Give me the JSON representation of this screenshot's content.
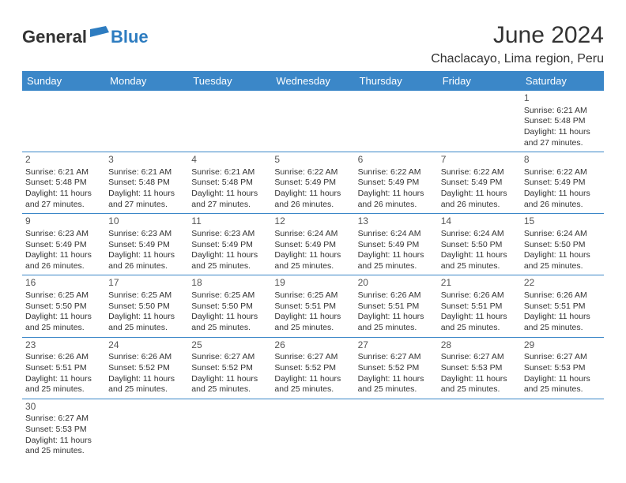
{
  "brand": {
    "part1": "General",
    "part2": "Blue"
  },
  "title": "June 2024",
  "location": "Chaclacayo, Lima region, Peru",
  "colors": {
    "header_bg": "#3b87c8",
    "header_text": "#ffffff",
    "brand_blue": "#2d7cc0",
    "text": "#333333",
    "rule": "#3b87c8"
  },
  "weekdays": [
    "Sunday",
    "Monday",
    "Tuesday",
    "Wednesday",
    "Thursday",
    "Friday",
    "Saturday"
  ],
  "weeks": [
    [
      null,
      null,
      null,
      null,
      null,
      null,
      {
        "d": "1",
        "l1": "Sunrise: 6:21 AM",
        "l2": "Sunset: 5:48 PM",
        "l3": "Daylight: 11 hours",
        "l4": "and 27 minutes."
      }
    ],
    [
      {
        "d": "2",
        "l1": "Sunrise: 6:21 AM",
        "l2": "Sunset: 5:48 PM",
        "l3": "Daylight: 11 hours",
        "l4": "and 27 minutes."
      },
      {
        "d": "3",
        "l1": "Sunrise: 6:21 AM",
        "l2": "Sunset: 5:48 PM",
        "l3": "Daylight: 11 hours",
        "l4": "and 27 minutes."
      },
      {
        "d": "4",
        "l1": "Sunrise: 6:21 AM",
        "l2": "Sunset: 5:48 PM",
        "l3": "Daylight: 11 hours",
        "l4": "and 27 minutes."
      },
      {
        "d": "5",
        "l1": "Sunrise: 6:22 AM",
        "l2": "Sunset: 5:49 PM",
        "l3": "Daylight: 11 hours",
        "l4": "and 26 minutes."
      },
      {
        "d": "6",
        "l1": "Sunrise: 6:22 AM",
        "l2": "Sunset: 5:49 PM",
        "l3": "Daylight: 11 hours",
        "l4": "and 26 minutes."
      },
      {
        "d": "7",
        "l1": "Sunrise: 6:22 AM",
        "l2": "Sunset: 5:49 PM",
        "l3": "Daylight: 11 hours",
        "l4": "and 26 minutes."
      },
      {
        "d": "8",
        "l1": "Sunrise: 6:22 AM",
        "l2": "Sunset: 5:49 PM",
        "l3": "Daylight: 11 hours",
        "l4": "and 26 minutes."
      }
    ],
    [
      {
        "d": "9",
        "l1": "Sunrise: 6:23 AM",
        "l2": "Sunset: 5:49 PM",
        "l3": "Daylight: 11 hours",
        "l4": "and 26 minutes."
      },
      {
        "d": "10",
        "l1": "Sunrise: 6:23 AM",
        "l2": "Sunset: 5:49 PM",
        "l3": "Daylight: 11 hours",
        "l4": "and 26 minutes."
      },
      {
        "d": "11",
        "l1": "Sunrise: 6:23 AM",
        "l2": "Sunset: 5:49 PM",
        "l3": "Daylight: 11 hours",
        "l4": "and 25 minutes."
      },
      {
        "d": "12",
        "l1": "Sunrise: 6:24 AM",
        "l2": "Sunset: 5:49 PM",
        "l3": "Daylight: 11 hours",
        "l4": "and 25 minutes."
      },
      {
        "d": "13",
        "l1": "Sunrise: 6:24 AM",
        "l2": "Sunset: 5:49 PM",
        "l3": "Daylight: 11 hours",
        "l4": "and 25 minutes."
      },
      {
        "d": "14",
        "l1": "Sunrise: 6:24 AM",
        "l2": "Sunset: 5:50 PM",
        "l3": "Daylight: 11 hours",
        "l4": "and 25 minutes."
      },
      {
        "d": "15",
        "l1": "Sunrise: 6:24 AM",
        "l2": "Sunset: 5:50 PM",
        "l3": "Daylight: 11 hours",
        "l4": "and 25 minutes."
      }
    ],
    [
      {
        "d": "16",
        "l1": "Sunrise: 6:25 AM",
        "l2": "Sunset: 5:50 PM",
        "l3": "Daylight: 11 hours",
        "l4": "and 25 minutes."
      },
      {
        "d": "17",
        "l1": "Sunrise: 6:25 AM",
        "l2": "Sunset: 5:50 PM",
        "l3": "Daylight: 11 hours",
        "l4": "and 25 minutes."
      },
      {
        "d": "18",
        "l1": "Sunrise: 6:25 AM",
        "l2": "Sunset: 5:50 PM",
        "l3": "Daylight: 11 hours",
        "l4": "and 25 minutes."
      },
      {
        "d": "19",
        "l1": "Sunrise: 6:25 AM",
        "l2": "Sunset: 5:51 PM",
        "l3": "Daylight: 11 hours",
        "l4": "and 25 minutes."
      },
      {
        "d": "20",
        "l1": "Sunrise: 6:26 AM",
        "l2": "Sunset: 5:51 PM",
        "l3": "Daylight: 11 hours",
        "l4": "and 25 minutes."
      },
      {
        "d": "21",
        "l1": "Sunrise: 6:26 AM",
        "l2": "Sunset: 5:51 PM",
        "l3": "Daylight: 11 hours",
        "l4": "and 25 minutes."
      },
      {
        "d": "22",
        "l1": "Sunrise: 6:26 AM",
        "l2": "Sunset: 5:51 PM",
        "l3": "Daylight: 11 hours",
        "l4": "and 25 minutes."
      }
    ],
    [
      {
        "d": "23",
        "l1": "Sunrise: 6:26 AM",
        "l2": "Sunset: 5:51 PM",
        "l3": "Daylight: 11 hours",
        "l4": "and 25 minutes."
      },
      {
        "d": "24",
        "l1": "Sunrise: 6:26 AM",
        "l2": "Sunset: 5:52 PM",
        "l3": "Daylight: 11 hours",
        "l4": "and 25 minutes."
      },
      {
        "d": "25",
        "l1": "Sunrise: 6:27 AM",
        "l2": "Sunset: 5:52 PM",
        "l3": "Daylight: 11 hours",
        "l4": "and 25 minutes."
      },
      {
        "d": "26",
        "l1": "Sunrise: 6:27 AM",
        "l2": "Sunset: 5:52 PM",
        "l3": "Daylight: 11 hours",
        "l4": "and 25 minutes."
      },
      {
        "d": "27",
        "l1": "Sunrise: 6:27 AM",
        "l2": "Sunset: 5:52 PM",
        "l3": "Daylight: 11 hours",
        "l4": "and 25 minutes."
      },
      {
        "d": "28",
        "l1": "Sunrise: 6:27 AM",
        "l2": "Sunset: 5:53 PM",
        "l3": "Daylight: 11 hours",
        "l4": "and 25 minutes."
      },
      {
        "d": "29",
        "l1": "Sunrise: 6:27 AM",
        "l2": "Sunset: 5:53 PM",
        "l3": "Daylight: 11 hours",
        "l4": "and 25 minutes."
      }
    ],
    [
      {
        "d": "30",
        "l1": "Sunrise: 6:27 AM",
        "l2": "Sunset: 5:53 PM",
        "l3": "Daylight: 11 hours",
        "l4": "and 25 minutes."
      },
      null,
      null,
      null,
      null,
      null,
      null
    ]
  ]
}
